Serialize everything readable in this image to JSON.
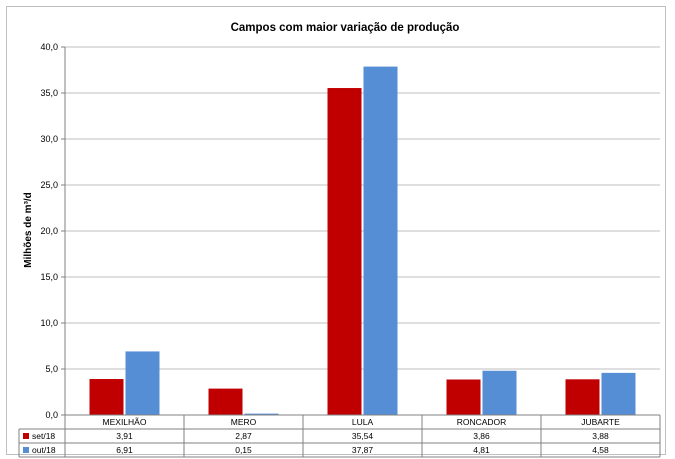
{
  "chart_data": {
    "type": "bar",
    "title": "Campos com maior variação de produção",
    "xlabel": "",
    "ylabel": "Milhões de m³/d",
    "ylim": [
      0,
      40
    ],
    "yticks": [
      "0,0",
      "5,0",
      "10,0",
      "15,0",
      "20,0",
      "25,0",
      "30,0",
      "35,0",
      "40,0"
    ],
    "grid": true,
    "legend": "data-table",
    "categories": [
      "MEXILHÃO",
      "MERO",
      "LULA",
      "RONCADOR",
      "JUBARTE"
    ],
    "series": [
      {
        "name": "set/18",
        "color": "#C00000",
        "values": [
          3.91,
          2.87,
          35.54,
          3.86,
          3.88
        ],
        "labels": [
          "3,91",
          "2,87",
          "35,54",
          "3,86",
          "3,88"
        ]
      },
      {
        "name": "out/18",
        "color": "#558ED5",
        "values": [
          6.91,
          0.15,
          37.87,
          4.81,
          4.58
        ],
        "labels": [
          "6,91",
          "0,15",
          "37,87",
          "4,81",
          "4,58"
        ]
      }
    ]
  }
}
